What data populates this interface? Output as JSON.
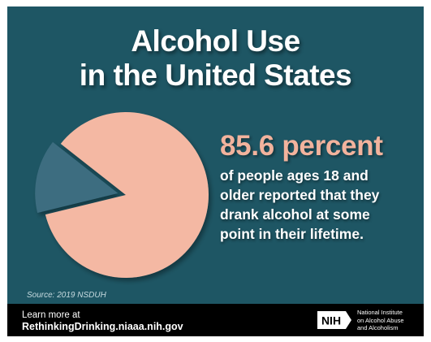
{
  "title": {
    "line1": "Alcohol Use",
    "line2": "in the United States"
  },
  "stat": {
    "headline": "85.6 percent",
    "lines": [
      "of people ages 18 and",
      "older reported that they",
      "drank alcohol at some",
      "point in their lifetime."
    ]
  },
  "source": "Source: 2019 NSDUH",
  "footer": {
    "learn_more": "Learn more at",
    "url": "RethinkingDrinking.niaaa.nih.gov",
    "logo_text": "NIH",
    "institute_lines": [
      "National Institute",
      "on Alcohol Abuse",
      "and Alcoholism"
    ]
  },
  "colors": {
    "background": "#1e5664",
    "pie_main": "#f4b8a3",
    "pie_slice": "#3e6d80",
    "accent_text": "#f2b39d"
  },
  "chart_data": {
    "type": "pie",
    "title": "",
    "slices": [
      {
        "label": "",
        "value": 85.6,
        "color": "#f4b8a3",
        "exploded": false
      },
      {
        "label": "",
        "value": 14.4,
        "color": "#3e6d80",
        "exploded": true
      }
    ]
  }
}
